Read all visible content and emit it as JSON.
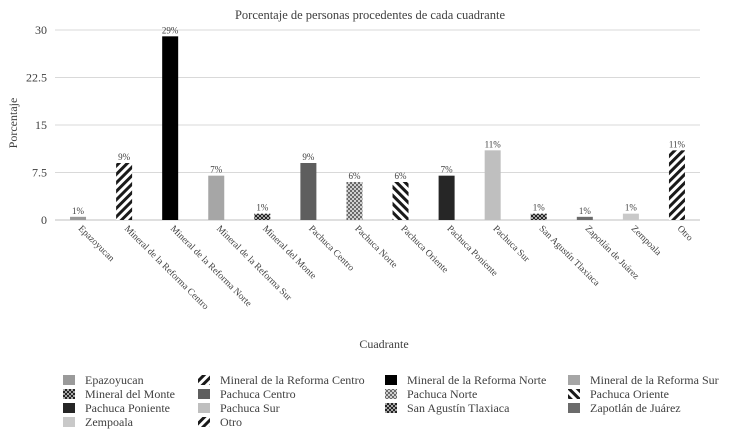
{
  "chart_data": {
    "type": "bar",
    "title": "Porcentaje de personas procedentes de cada cuadrante",
    "xlabel": "Cuadrante",
    "ylabel": "Porcentaje",
    "ylim": [
      0,
      30
    ],
    "yticks": [
      "0",
      "7.5",
      "15",
      "22.5",
      "30"
    ],
    "ytick_values": [
      0,
      7.5,
      15,
      22.5,
      30
    ],
    "grid": true,
    "legend_position": "bottom",
    "categories": [
      "Epazoyucan",
      "Mineral de la Reforma Centro",
      "Mineral de la Reforma Norte",
      "Mineral de la Reforma Sur",
      "Mineral del Monte",
      "Pachuca Centro",
      "Pachuca Norte",
      "Pachuca Oriente",
      "Pachuca Poniente",
      "Pachuca Sur",
      "San Agustín Tlaxiaca",
      "Zapotlán de Juárez",
      "Zempoala",
      "Otro"
    ],
    "values": [
      0.5,
      9,
      29,
      7,
      1,
      9,
      6,
      6,
      7,
      11,
      1,
      0.5,
      1,
      11
    ],
    "data_labels": [
      "1%",
      "9%",
      "29%",
      "7%",
      "1%",
      "9%",
      "6%",
      "6%",
      "7%",
      "11%",
      "1%",
      "1%",
      "1%",
      "11%"
    ],
    "styles": [
      {
        "fill": "#9a9a9a",
        "pattern": "none"
      },
      {
        "fill": "#1a1a1a",
        "pattern": "diag-right"
      },
      {
        "fill": "#000000",
        "pattern": "none"
      },
      {
        "fill": "#a6a6a6",
        "pattern": "none"
      },
      {
        "fill": "#1a1a1a",
        "pattern": "diag-cross"
      },
      {
        "fill": "#5e5e5e",
        "pattern": "none"
      },
      {
        "fill": "#8c8c8c",
        "pattern": "checker"
      },
      {
        "fill": "#1a1a1a",
        "pattern": "diag-left"
      },
      {
        "fill": "#262626",
        "pattern": "none"
      },
      {
        "fill": "#bfbfbf",
        "pattern": "none"
      },
      {
        "fill": "#333333",
        "pattern": "diag-cross"
      },
      {
        "fill": "#6b6b6b",
        "pattern": "none"
      },
      {
        "fill": "#c9c9c9",
        "pattern": "none"
      },
      {
        "fill": "#333333",
        "pattern": "diag-right"
      }
    ]
  }
}
